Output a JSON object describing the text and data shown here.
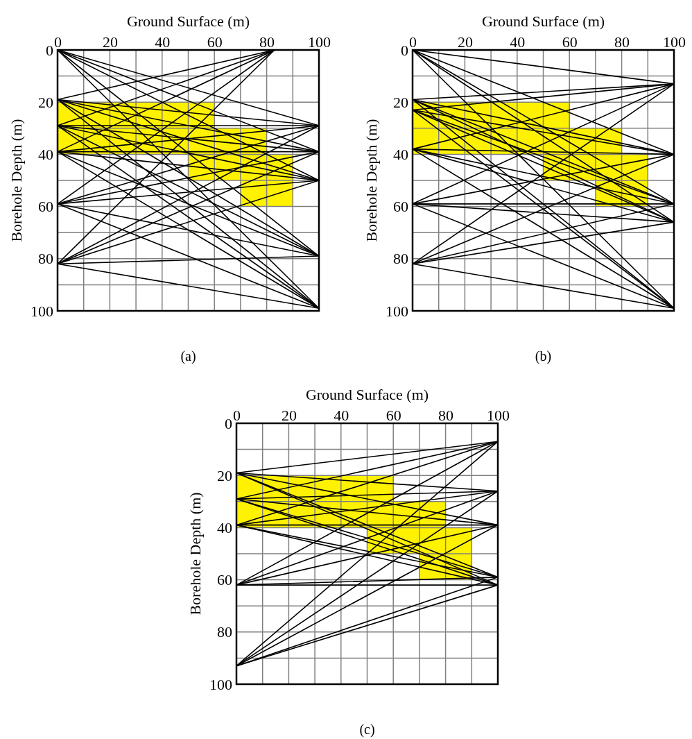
{
  "chart_data": [
    {
      "type": "line",
      "xlabel": "Ground Surface (m)",
      "ylabel": "Borehole Depth (m)",
      "annotations": [
        "(a)"
      ],
      "xlim": [
        0,
        100
      ],
      "ylim": [
        100,
        0
      ],
      "grid": true,
      "xticks": [
        0,
        {
          "value": 10,
          "label": null
        },
        20,
        {
          "value": 30,
          "label": null
        },
        40,
        {
          "value": 50,
          "label": null
        },
        60,
        {
          "value": 70,
          "label": null
        },
        80,
        {
          "value": 90,
          "label": null
        },
        100
      ],
      "yticks": [
        0,
        {
          "value": 10,
          "label": null
        },
        20,
        {
          "value": 30,
          "label": null
        },
        40,
        {
          "value": 50,
          "label": null
        },
        60,
        {
          "value": 70,
          "label": null
        },
        80,
        {
          "value": 90,
          "label": null
        },
        100
      ],
      "series": [
        {
          "type": "histogram",
          "color": "#fff200",
          "bins": [
            0,
            50,
            60,
            70,
            80,
            90
          ],
          "base": [
            20,
            20,
            30,
            30,
            40
          ],
          "values": [
            20,
            30,
            20,
            30,
            20
          ]
        },
        {
          "color": "#000000",
          "x": [
            0,
            100
          ],
          "values": [
            0,
            29
          ]
        },
        {
          "color": "#000000",
          "x": [
            0,
            100
          ],
          "values": [
            0,
            39
          ]
        },
        {
          "color": "#000000",
          "x": [
            0,
            100
          ],
          "values": [
            0,
            50
          ]
        },
        {
          "color": "#000000",
          "x": [
            0,
            100
          ],
          "values": [
            0,
            79
          ]
        },
        {
          "color": "#000000",
          "x": [
            0,
            100
          ],
          "values": [
            0,
            99
          ]
        },
        {
          "color": "#000000",
          "x": [
            0,
            83
          ],
          "values": [
            19,
            0
          ]
        },
        {
          "color": "#000000",
          "x": [
            0,
            100
          ],
          "values": [
            19,
            29
          ]
        },
        {
          "color": "#000000",
          "x": [
            0,
            100
          ],
          "values": [
            19,
            39
          ]
        },
        {
          "color": "#000000",
          "x": [
            0,
            100
          ],
          "values": [
            19,
            50
          ]
        },
        {
          "color": "#000000",
          "x": [
            0,
            100
          ],
          "values": [
            19,
            79
          ]
        },
        {
          "color": "#000000",
          "x": [
            0,
            100
          ],
          "values": [
            19,
            99
          ]
        },
        {
          "color": "#000000",
          "x": [
            0,
            83
          ],
          "values": [
            29,
            0
          ]
        },
        {
          "color": "#000000",
          "x": [
            0,
            100
          ],
          "values": [
            29,
            29
          ]
        },
        {
          "color": "#000000",
          "x": [
            0,
            100
          ],
          "values": [
            29,
            39
          ]
        },
        {
          "color": "#000000",
          "x": [
            0,
            100
          ],
          "values": [
            29,
            50
          ]
        },
        {
          "color": "#000000",
          "x": [
            0,
            100
          ],
          "values": [
            29,
            79
          ]
        },
        {
          "color": "#000000",
          "x": [
            0,
            100
          ],
          "values": [
            29,
            99
          ]
        },
        {
          "color": "#000000",
          "x": [
            0,
            83
          ],
          "values": [
            39,
            0
          ]
        },
        {
          "color": "#000000",
          "x": [
            0,
            100
          ],
          "values": [
            39,
            29
          ]
        },
        {
          "color": "#000000",
          "x": [
            0,
            100
          ],
          "values": [
            39,
            39
          ]
        },
        {
          "color": "#000000",
          "x": [
            0,
            100
          ],
          "values": [
            39,
            50
          ]
        },
        {
          "color": "#000000",
          "x": [
            0,
            100
          ],
          "values": [
            39,
            79
          ]
        },
        {
          "color": "#000000",
          "x": [
            0,
            100
          ],
          "values": [
            39,
            99
          ]
        },
        {
          "color": "#000000",
          "x": [
            0,
            83
          ],
          "values": [
            59,
            0
          ]
        },
        {
          "color": "#000000",
          "x": [
            0,
            100
          ],
          "values": [
            59,
            29
          ]
        },
        {
          "color": "#000000",
          "x": [
            0,
            100
          ],
          "values": [
            59,
            39
          ]
        },
        {
          "color": "#000000",
          "x": [
            0,
            100
          ],
          "values": [
            59,
            50
          ]
        },
        {
          "color": "#000000",
          "x": [
            0,
            100
          ],
          "values": [
            59,
            79
          ]
        },
        {
          "color": "#000000",
          "x": [
            0,
            100
          ],
          "values": [
            59,
            99
          ]
        },
        {
          "color": "#000000",
          "x": [
            0,
            83
          ],
          "values": [
            82,
            0
          ]
        },
        {
          "color": "#000000",
          "x": [
            0,
            100
          ],
          "values": [
            82,
            29
          ]
        },
        {
          "color": "#000000",
          "x": [
            0,
            100
          ],
          "values": [
            82,
            39
          ]
        },
        {
          "color": "#000000",
          "x": [
            0,
            100
          ],
          "values": [
            82,
            50
          ]
        },
        {
          "color": "#000000",
          "x": [
            0,
            100
          ],
          "values": [
            82,
            79
          ]
        },
        {
          "color": "#000000",
          "x": [
            0,
            100
          ],
          "values": [
            82,
            99
          ]
        }
      ]
    },
    {
      "type": "line",
      "xlabel": "Ground Surface (m)",
      "ylabel": "Borehole Depth (m)",
      "annotations": [
        "(b)"
      ],
      "xlim": [
        0,
        100
      ],
      "ylim": [
        100,
        0
      ],
      "grid": true,
      "xticks": [
        0,
        {
          "value": 10,
          "label": null
        },
        20,
        {
          "value": 30,
          "label": null
        },
        40,
        {
          "value": 50,
          "label": null
        },
        60,
        {
          "value": 70,
          "label": null
        },
        80,
        {
          "value": 90,
          "label": null
        },
        100
      ],
      "yticks": [
        0,
        {
          "value": 10,
          "label": null
        },
        20,
        {
          "value": 30,
          "label": null
        },
        40,
        {
          "value": 50,
          "label": null
        },
        60,
        {
          "value": 70,
          "label": null
        },
        80,
        {
          "value": 90,
          "label": null
        },
        100
      ],
      "series": [
        {
          "type": "histogram",
          "color": "#fff200",
          "bins": [
            0,
            50,
            60,
            70,
            80,
            90
          ],
          "base": [
            20,
            20,
            30,
            30,
            40
          ],
          "values": [
            20,
            30,
            20,
            30,
            20
          ]
        },
        {
          "color": "#000000",
          "x": [
            0,
            100
          ],
          "values": [
            0,
            13
          ]
        },
        {
          "color": "#000000",
          "x": [
            0,
            100
          ],
          "values": [
            0,
            40
          ]
        },
        {
          "color": "#000000",
          "x": [
            0,
            100
          ],
          "values": [
            0,
            59
          ]
        },
        {
          "color": "#000000",
          "x": [
            0,
            100
          ],
          "values": [
            0,
            66
          ]
        },
        {
          "color": "#000000",
          "x": [
            0,
            100
          ],
          "values": [
            0,
            99
          ]
        },
        {
          "color": "#000000",
          "x": [
            0,
            100
          ],
          "values": [
            19,
            13
          ]
        },
        {
          "color": "#000000",
          "x": [
            0,
            100
          ],
          "values": [
            19,
            40
          ]
        },
        {
          "color": "#000000",
          "x": [
            0,
            100
          ],
          "values": [
            19,
            59
          ]
        },
        {
          "color": "#000000",
          "x": [
            0,
            100
          ],
          "values": [
            19,
            66
          ]
        },
        {
          "color": "#000000",
          "x": [
            0,
            100
          ],
          "values": [
            19,
            99
          ]
        },
        {
          "color": "#000000",
          "x": [
            0,
            100
          ],
          "values": [
            23,
            13
          ]
        },
        {
          "color": "#000000",
          "x": [
            0,
            100
          ],
          "values": [
            23,
            40
          ]
        },
        {
          "color": "#000000",
          "x": [
            0,
            100
          ],
          "values": [
            23,
            59
          ]
        },
        {
          "color": "#000000",
          "x": [
            0,
            100
          ],
          "values": [
            23,
            66
          ]
        },
        {
          "color": "#000000",
          "x": [
            0,
            100
          ],
          "values": [
            23,
            99
          ]
        },
        {
          "color": "#000000",
          "x": [
            0,
            100
          ],
          "values": [
            38,
            13
          ]
        },
        {
          "color": "#000000",
          "x": [
            0,
            100
          ],
          "values": [
            38,
            40
          ]
        },
        {
          "color": "#000000",
          "x": [
            0,
            100
          ],
          "values": [
            38,
            59
          ]
        },
        {
          "color": "#000000",
          "x": [
            0,
            100
          ],
          "values": [
            38,
            66
          ]
        },
        {
          "color": "#000000",
          "x": [
            0,
            100
          ],
          "values": [
            38,
            99
          ]
        },
        {
          "color": "#000000",
          "x": [
            0,
            100
          ],
          "values": [
            59,
            13
          ]
        },
        {
          "color": "#000000",
          "x": [
            0,
            100
          ],
          "values": [
            59,
            40
          ]
        },
        {
          "color": "#000000",
          "x": [
            0,
            100
          ],
          "values": [
            59,
            59
          ]
        },
        {
          "color": "#000000",
          "x": [
            0,
            100
          ],
          "values": [
            59,
            66
          ]
        },
        {
          "color": "#000000",
          "x": [
            0,
            100
          ],
          "values": [
            59,
            99
          ]
        },
        {
          "color": "#000000",
          "x": [
            0,
            100
          ],
          "values": [
            82,
            13
          ]
        },
        {
          "color": "#000000",
          "x": [
            0,
            100
          ],
          "values": [
            82,
            40
          ]
        },
        {
          "color": "#000000",
          "x": [
            0,
            100
          ],
          "values": [
            82,
            59
          ]
        },
        {
          "color": "#000000",
          "x": [
            0,
            100
          ],
          "values": [
            82,
            66
          ]
        },
        {
          "color": "#000000",
          "x": [
            0,
            100
          ],
          "values": [
            82,
            99
          ]
        }
      ]
    },
    {
      "type": "line",
      "xlabel": "Ground Surface (m)",
      "ylabel": "Borehole Depth (m)",
      "annotations": [
        "(c)"
      ],
      "xlim": [
        0,
        100
      ],
      "ylim": [
        100,
        0
      ],
      "grid": true,
      "xticks": [
        0,
        {
          "value": 10,
          "label": null
        },
        20,
        {
          "value": 30,
          "label": null
        },
        40,
        {
          "value": 50,
          "label": null
        },
        60,
        {
          "value": 70,
          "label": null
        },
        80,
        {
          "value": 90,
          "label": null
        },
        100
      ],
      "yticks": [
        0,
        {
          "value": 10,
          "label": null
        },
        20,
        {
          "value": 30,
          "label": null
        },
        40,
        {
          "value": 50,
          "label": null
        },
        60,
        {
          "value": 70,
          "label": null
        },
        80,
        {
          "value": 90,
          "label": null
        },
        100
      ],
      "series": [
        {
          "type": "histogram",
          "color": "#fff200",
          "bins": [
            0,
            50,
            60,
            70,
            80,
            90
          ],
          "base": [
            20,
            20,
            30,
            30,
            40
          ],
          "values": [
            20,
            30,
            20,
            30,
            20
          ]
        },
        {
          "color": "#000000",
          "x": [
            0,
            100
          ],
          "values": [
            19,
            7
          ]
        },
        {
          "color": "#000000",
          "x": [
            0,
            100
          ],
          "values": [
            19,
            26
          ]
        },
        {
          "color": "#000000",
          "x": [
            0,
            100
          ],
          "values": [
            19,
            39
          ]
        },
        {
          "color": "#000000",
          "x": [
            0,
            100
          ],
          "values": [
            19,
            59
          ]
        },
        {
          "color": "#000000",
          "x": [
            0,
            100
          ],
          "values": [
            19,
            62
          ]
        },
        {
          "color": "#000000",
          "x": [
            0,
            100
          ],
          "values": [
            29,
            7
          ]
        },
        {
          "color": "#000000",
          "x": [
            0,
            100
          ],
          "values": [
            29,
            26
          ]
        },
        {
          "color": "#000000",
          "x": [
            0,
            100
          ],
          "values": [
            29,
            39
          ]
        },
        {
          "color": "#000000",
          "x": [
            0,
            100
          ],
          "values": [
            29,
            59
          ]
        },
        {
          "color": "#000000",
          "x": [
            0,
            100
          ],
          "values": [
            29,
            62
          ]
        },
        {
          "color": "#000000",
          "x": [
            0,
            100
          ],
          "values": [
            39,
            7
          ]
        },
        {
          "color": "#000000",
          "x": [
            0,
            100
          ],
          "values": [
            39,
            26
          ]
        },
        {
          "color": "#000000",
          "x": [
            0,
            100
          ],
          "values": [
            39,
            39
          ]
        },
        {
          "color": "#000000",
          "x": [
            0,
            100
          ],
          "values": [
            39,
            59
          ]
        },
        {
          "color": "#000000",
          "x": [
            0,
            100
          ],
          "values": [
            39,
            62
          ]
        },
        {
          "color": "#000000",
          "x": [
            0,
            100
          ],
          "values": [
            62,
            7
          ]
        },
        {
          "color": "#000000",
          "x": [
            0,
            100
          ],
          "values": [
            62,
            26
          ]
        },
        {
          "color": "#000000",
          "x": [
            0,
            100
          ],
          "values": [
            62,
            39
          ]
        },
        {
          "color": "#000000",
          "x": [
            0,
            100
          ],
          "values": [
            62,
            59
          ]
        },
        {
          "color": "#000000",
          "x": [
            0,
            100
          ],
          "values": [
            62,
            62
          ]
        },
        {
          "color": "#000000",
          "x": [
            0,
            100
          ],
          "values": [
            93,
            7
          ]
        },
        {
          "color": "#000000",
          "x": [
            0,
            100
          ],
          "values": [
            93,
            26
          ]
        },
        {
          "color": "#000000",
          "x": [
            0,
            100
          ],
          "values": [
            93,
            39
          ]
        },
        {
          "color": "#000000",
          "x": [
            0,
            100
          ],
          "values": [
            93,
            59
          ]
        },
        {
          "color": "#000000",
          "x": [
            0,
            100
          ],
          "values": [
            93,
            62
          ]
        }
      ]
    }
  ]
}
